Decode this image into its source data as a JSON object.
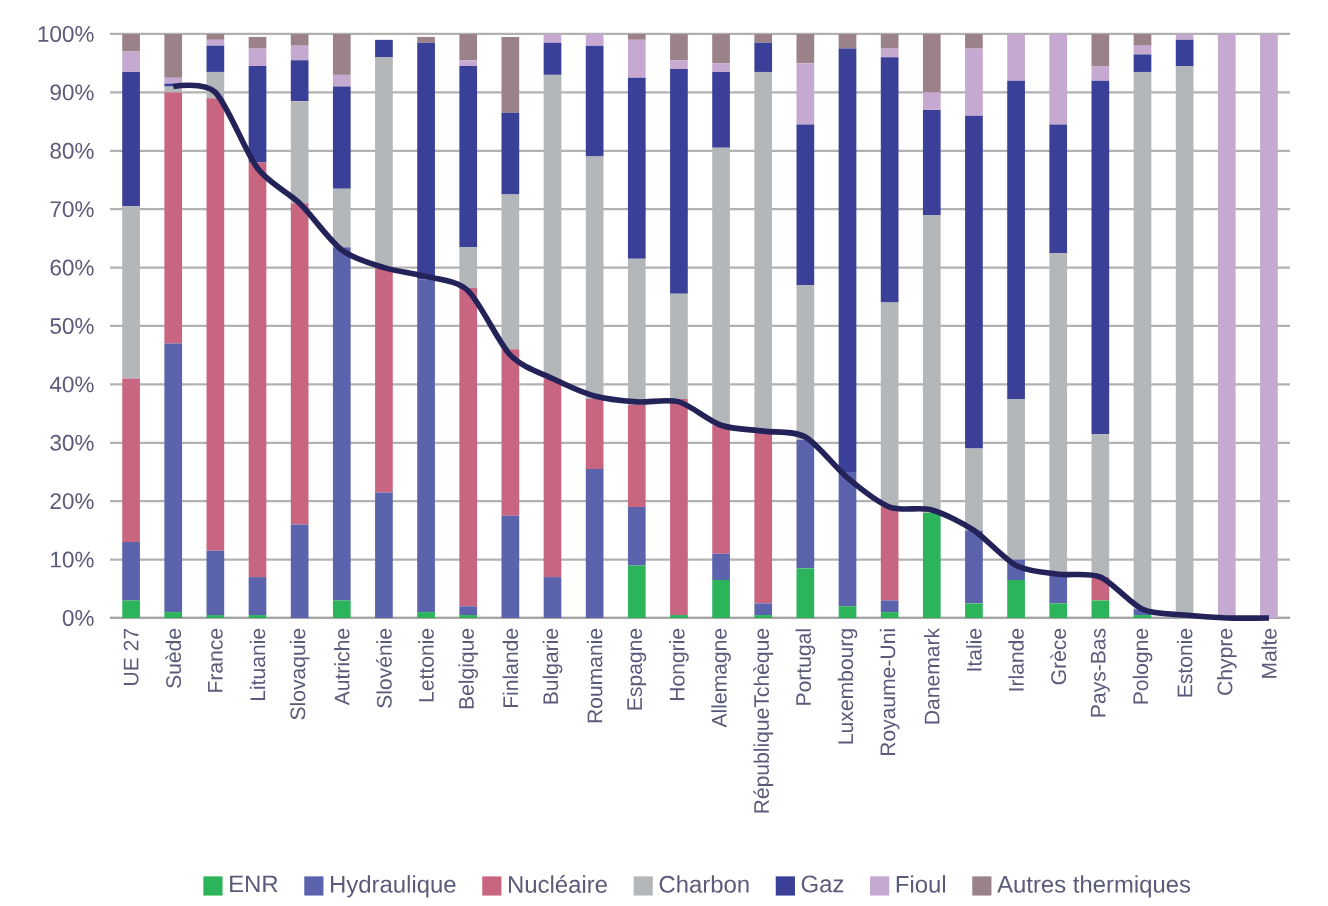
{
  "chart_data": {
    "type": "bar",
    "stacked": true,
    "categories": [
      "UE 27",
      "Suède",
      "France",
      "Lituanie",
      "Slovaquie",
      "Autriche",
      "Slovénie",
      "Lettonie",
      "Belgique",
      "Finlande",
      "Bulgarie",
      "Roumanie",
      "Espagne",
      "Hongrie",
      "Allemagne",
      "RépubliqueTchèque",
      "Portugal",
      "Luxembourg",
      "Royaume-Uni",
      "Danemark",
      "Italie",
      "Irlande",
      "Grèce",
      "Pays-Bas",
      "Pologne",
      "Estonie",
      "Chypre",
      "Malte"
    ],
    "series": [
      {
        "name": "ENR",
        "color": "#2bb45a",
        "values": [
          3,
          1,
          0.5,
          0.5,
          0,
          3,
          0,
          1,
          0.5,
          0,
          0,
          0,
          9,
          0.5,
          6.5,
          0.5,
          8.5,
          2,
          1,
          18,
          2.5,
          6.5,
          2.5,
          3,
          0.5,
          0,
          0,
          0
        ]
      },
      {
        "name": "Hydraulique",
        "color": "#5b63ad",
        "values": [
          10,
          46,
          11,
          6.5,
          16,
          60.5,
          21.5,
          57,
          1.5,
          17.5,
          7,
          25.5,
          10,
          0,
          4.5,
          2,
          22,
          23,
          2,
          0,
          12.5,
          3.5,
          5,
          0,
          1,
          0,
          0,
          0
        ]
      },
      {
        "name": "Nucléaire",
        "color": "#c86682",
        "values": [
          28,
          43,
          77.5,
          71,
          55,
          0,
          38.5,
          0,
          54.5,
          28.5,
          34,
          12,
          17.5,
          37,
          22,
          29.5,
          0,
          0,
          16,
          0,
          0,
          0,
          0,
          4,
          0,
          0,
          0,
          0
        ]
      },
      {
        "name": "Charbon",
        "color": "#b4b7b9",
        "values": [
          29.5,
          1,
          4.5,
          null,
          17.5,
          10,
          36,
          0,
          7,
          26.5,
          52,
          41.5,
          25,
          18,
          47.5,
          61.5,
          26.5,
          0,
          35,
          51,
          14,
          27.5,
          55,
          24.5,
          92,
          94.5,
          0,
          0
        ]
      },
      {
        "name": "Gaz",
        "color": "#3a3f98",
        "values": [
          23,
          0.5,
          4.5,
          16.5,
          7,
          17.5,
          3,
          40.5,
          31,
          14,
          5.5,
          19,
          31,
          38.5,
          13,
          5,
          27.5,
          72.5,
          42,
          18,
          57,
          54.5,
          22,
          60.5,
          3,
          4.5,
          0,
          0
        ]
      },
      {
        "name": "Fioul",
        "color": "#c6a9d1",
        "values": [
          3.5,
          1,
          1,
          3,
          2.5,
          2,
          null,
          null,
          1,
          null,
          1.5,
          2,
          6.5,
          1.5,
          1.5,
          0,
          10.5,
          0,
          1.5,
          3,
          11.5,
          8,
          15.5,
          2.5,
          1.5,
          1,
          100,
          100
        ]
      },
      {
        "name": "Autres thermiques",
        "color": "#9b8289",
        "values": [
          3,
          7.5,
          1,
          2,
          2,
          7,
          null,
          1,
          4.5,
          13,
          0,
          0,
          1,
          4.5,
          5,
          1.5,
          5,
          2.5,
          2.5,
          10,
          2.5,
          0,
          0,
          5.5,
          2,
          0,
          0,
          0
        ]
      },
      {
        "type": "line",
        "color": "#23235a",
        "values": [
          null,
          91,
          90,
          77,
          71,
          63,
          60,
          58.5,
          56,
          45,
          41,
          38,
          37,
          37,
          33,
          32,
          31,
          24,
          19,
          18.5,
          15,
          9,
          7.5,
          7,
          1.5,
          0.5,
          0,
          0
        ]
      }
    ],
    "ylim": [
      0,
      100
    ],
    "yticks": [
      {
        "value": 0,
        "label": "0%"
      },
      {
        "value": 10,
        "label": "10%"
      },
      {
        "value": 20,
        "label": "20%"
      },
      {
        "value": 30,
        "label": "30%"
      },
      {
        "value": 40,
        "label": "40%"
      },
      {
        "value": 50,
        "label": "50%"
      },
      {
        "value": 60,
        "label": "60%"
      },
      {
        "value": 70,
        "label": "70%"
      },
      {
        "value": 80,
        "label": "80%"
      },
      {
        "value": 90,
        "label": "90%"
      },
      {
        "value": 100,
        "label": "100%"
      }
    ],
    "grid": "y",
    "legend": "bottom"
  }
}
